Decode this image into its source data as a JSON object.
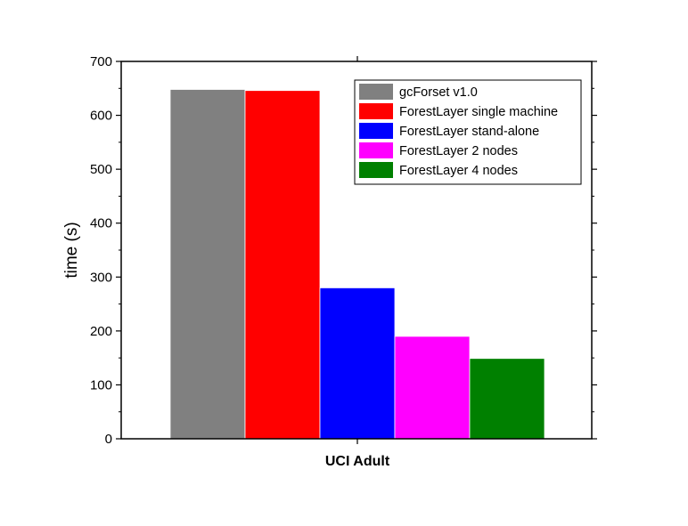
{
  "chart_data": {
    "type": "bar",
    "categories": [
      "UCI Adult"
    ],
    "series": [
      {
        "name": "gcForset v1.0",
        "values": [
          648
        ],
        "color": "#808080"
      },
      {
        "name": "ForestLayer single machine",
        "values": [
          646
        ],
        "color": "#ff0000"
      },
      {
        "name": "ForestLayer stand-alone",
        "values": [
          280
        ],
        "color": "#0000ff"
      },
      {
        "name": "ForestLayer 2 nodes",
        "values": [
          190
        ],
        "color": "#ff00ff"
      },
      {
        "name": "ForestLayer 4 nodes",
        "values": [
          149
        ],
        "color": "#008000"
      }
    ],
    "ylabel": "time (s)",
    "xlabel": "",
    "ylim": [
      0,
      700
    ],
    "yticks": [
      0,
      100,
      200,
      300,
      400,
      500,
      600,
      700
    ],
    "ytick_labels": [
      "0",
      "100",
      "200",
      "300",
      "400",
      "500",
      "600",
      "700"
    ],
    "grid": false,
    "legend_position": "top-right"
  }
}
